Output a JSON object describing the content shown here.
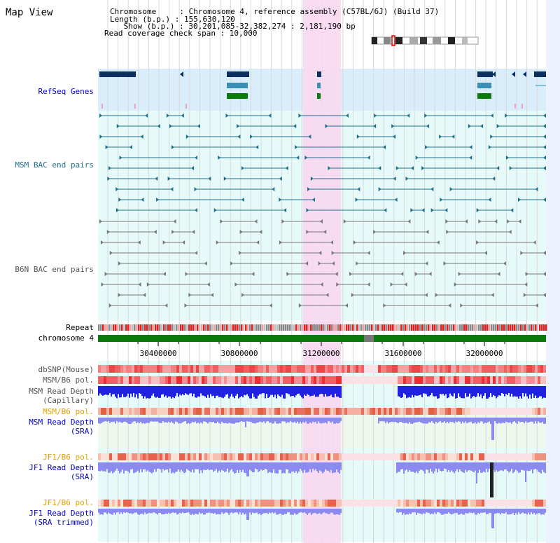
{
  "title": "Map View",
  "info": {
    "chromosome": "Chromosome     : Chromosome 4, reference assembly (C57BL/6J) (Build 37)",
    "length": "Length (b.p.) : 155,630,120",
    "show": " Show (b.p.) : 30,201,085-32,382,274 : 2,181,190 bp",
    "coverage": "Read coverage check span : 10,000"
  },
  "tracks": {
    "refseq": "RefSeq Genes",
    "msm_bac": "MSM BAC end pairs",
    "b6n_bac": "B6N BAC end pairs",
    "repeat": "Repeat",
    "chromosome": "chromosome 4",
    "dbsnp": "dbSNP(Mouse)",
    "msm_b6_pol_1": "MSM/B6 pol.",
    "msm_depth_cap_1": "MSM Read Depth",
    "msm_depth_cap_2": "(Capillary)",
    "msm_b6_pol_2": "MSM/B6 pol.",
    "msm_depth_sra_1": "MSM Read Depth",
    "msm_depth_sra_2": "(SRA)",
    "jf1_b6_pol_1": "JF1/B6 pol.",
    "jf1_depth_sra_1": "JF1 Read Depth",
    "jf1_depth_sra_2": "(SRA)",
    "jf1_b6_pol_2": "JF1/B6 pol.",
    "jf1_depth_trim_1": "JF1 Read Depth",
    "jf1_depth_trim_2": "(SRA trimmed)"
  },
  "axis_ticks": [
    "30400000",
    "30800000",
    "31200000",
    "31600000",
    "32000000"
  ],
  "colors": {
    "highlight": "#f8d8f0",
    "refseq_bg": "#d9eefa",
    "lane_bg": "#e6fafa",
    "msm_bac": "#1f6f8b",
    "b6n_bac": "#777777",
    "chromosome": "#0a7a0a",
    "depth_blue": "#2020e0",
    "depth_light": "#8a8af0",
    "label_blue": "#0000cc",
    "label_teal": "#1f6f8b",
    "label_orange": "#e8a000",
    "label_gray": "#555555"
  }
}
